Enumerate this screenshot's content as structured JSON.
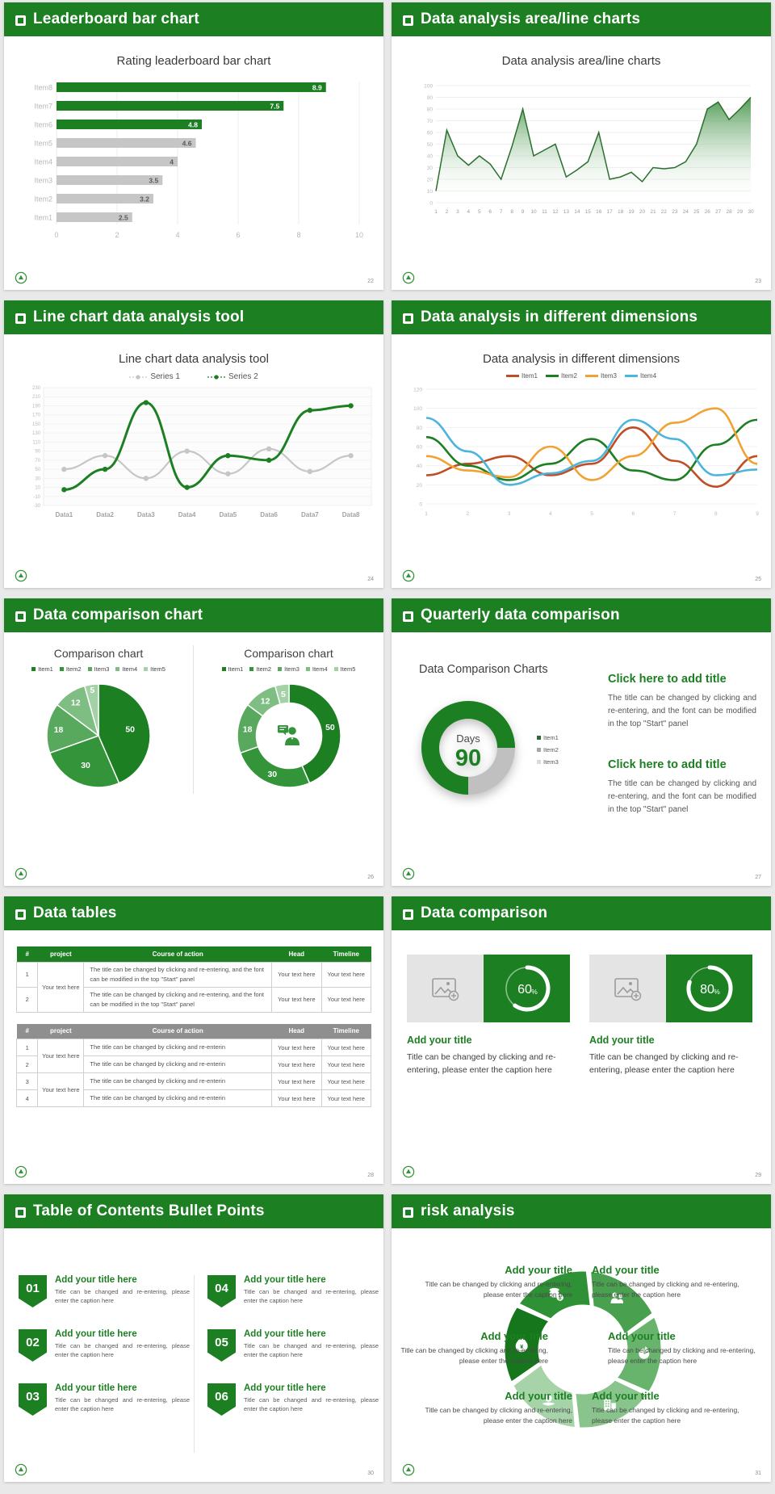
{
  "theme": {
    "green": "#1c7f22",
    "green_mid": "#349439",
    "green_light": "#58a95d",
    "green_lighter": "#7fbe83",
    "green_lightest": "#a4d2a6",
    "gray_bar": "#c6c6c6",
    "page_bg": "#e9e9e9",
    "red": "#bf4e26",
    "orange": "#f0a232",
    "blue": "#4bb5dc"
  },
  "slides": {
    "s1": {
      "header": "Leaderboard bar chart",
      "page": "22",
      "chart_title": "Rating leaderboard bar chart"
    },
    "s2": {
      "header": "Data analysis area/line charts",
      "page": "23",
      "chart_title": "Data analysis area/line charts"
    },
    "s3": {
      "header": "Line chart data analysis tool",
      "page": "24",
      "chart_title": "Line chart data analysis tool"
    },
    "s4": {
      "header": "Data analysis in different dimensions",
      "page": "25",
      "chart_title": "Data analysis in different dimensions"
    },
    "s5": {
      "header": "Data comparison chart",
      "page": "26",
      "pie_title": "Comparison chart",
      "donut_title": "Comparison chart"
    },
    "s6": {
      "header": "Quarterly data comparison",
      "page": "27",
      "chart_title": "Data Comparison Charts",
      "gauge_label": "Days",
      "gauge_value": "90",
      "gauge_legend": [
        "Item1",
        "Item2",
        "Item3"
      ],
      "blocks": [
        {
          "title": "Click here to add title",
          "body": "The title can be changed by clicking and re-entering, and the font can be modified in the top \"Start\" panel"
        },
        {
          "title": "Click here to add title",
          "body": "The title can be changed by clicking and re-entering, and the font can be modified in the top \"Start\" panel"
        }
      ]
    },
    "s7": {
      "header": "Data tables",
      "page": "28",
      "table1": {
        "columns": [
          "#",
          "project",
          "Course of action",
          "Head",
          "Timeline"
        ],
        "project_merged": "Your text here",
        "rows": [
          {
            "num": "1",
            "course": "The title can be changed by clicking and re-entering, and the font can be modified in the top \"Start\" panel",
            "head": "Your text here",
            "timeline": "Your text here"
          },
          {
            "num": "2",
            "course": "The title can be changed by clicking and re-entering, and the font can be modified in the top \"Start\" panel",
            "head": "Your text here",
            "timeline": "Your text here"
          }
        ]
      },
      "table2": {
        "columns": [
          "#",
          "project",
          "Course of action",
          "Head",
          "Timeline"
        ],
        "project_merged": "Your text here",
        "rows": [
          {
            "num": "1",
            "course": "The title can be changed by clicking and re-enterin",
            "head": "Your text here",
            "timeline": "Your text here"
          },
          {
            "num": "2",
            "course": "The title can be changed by clicking and re-enterin",
            "head": "Your text here",
            "timeline": "Your text here"
          },
          {
            "num": "3",
            "course": "The title can be changed by clicking and re-enterin",
            "head": "Your text here",
            "timeline": "Your text here"
          },
          {
            "num": "4",
            "course": "The title can be changed by clicking and re-enterin",
            "head": "Your text here",
            "timeline": "Your text here"
          }
        ]
      }
    },
    "s8": {
      "header": "Data comparison",
      "page": "29",
      "cards": [
        {
          "percent": 60,
          "suffix": "%",
          "title": "Add your title",
          "caption": "Title can be changed by clicking and re-entering, please enter the caption here"
        },
        {
          "percent": 80,
          "suffix": "%",
          "title": "Add your title",
          "caption": "Title can be changed by clicking and re-entering, please enter the caption here"
        }
      ]
    },
    "s9": {
      "header": "Table of Contents Bullet Points",
      "page": "30",
      "items": [
        {
          "num": "01",
          "title": "Add your title here",
          "caption": "Title can be changed and re-entering, please enter the caption here"
        },
        {
          "num": "02",
          "title": "Add your title here",
          "caption": "Title can be changed and re-entering, please enter the caption here"
        },
        {
          "num": "03",
          "title": "Add your title here",
          "caption": "Title can be changed and re-entering, please enter the caption here"
        },
        {
          "num": "04",
          "title": "Add your title here",
          "caption": "Title can be changed and re-entering, please enter the caption here"
        },
        {
          "num": "05",
          "title": "Add your title here",
          "caption": "Title can be changed and re-entering, please enter the caption here"
        },
        {
          "num": "06",
          "title": "Add your title here",
          "caption": "Title can be changed and re-entering, please enter the caption here"
        }
      ]
    },
    "s10": {
      "header": "risk analysis",
      "page": "31",
      "icons": [
        "moneybag-icon",
        "coins-icon",
        "people-icon",
        "pie-icon",
        "building-icon",
        "hand-money-icon"
      ],
      "items": [
        {
          "title": "Add your title",
          "caption": "Title can be changed by clicking and re-entering, please enter the caption here"
        },
        {
          "title": "Add your title",
          "caption": "Title can be changed by clicking and re-entering, please enter the caption here"
        },
        {
          "title": "Add your title",
          "caption": "Title can be changed by clicking and re-entering, please enter the caption here"
        },
        {
          "title": "Add your title",
          "caption": "Title can be changed by clicking and re-entering, please enter the caption here"
        },
        {
          "title": "Add your title",
          "caption": "Title can be changed by clicking and re-entering, please enter the caption here"
        },
        {
          "title": "Add your title",
          "caption": "Title can be changed by clicking and re-entering, please enter the caption here"
        }
      ]
    }
  },
  "chart_data": [
    {
      "id": "bar-leaderboard",
      "type": "bar",
      "orientation": "horizontal",
      "title": "Rating leaderboard bar chart",
      "categories": [
        "Item8",
        "Item7",
        "Item6",
        "Item5",
        "Item4",
        "Item3",
        "Item2",
        "Item1"
      ],
      "values": [
        8.9,
        7.5,
        4.8,
        4.6,
        4,
        3.5,
        3.2,
        2.5
      ],
      "highlight_green_count": 3,
      "xlim": [
        0,
        10
      ],
      "xticks": [
        0,
        2,
        4,
        6,
        8,
        10
      ]
    },
    {
      "id": "area-analysis",
      "type": "area",
      "title": "Data analysis area/line charts",
      "x": [
        1,
        2,
        3,
        4,
        5,
        6,
        7,
        8,
        9,
        10,
        11,
        12,
        13,
        14,
        15,
        16,
        17,
        18,
        19,
        20,
        21,
        22,
        23,
        24,
        25,
        26,
        27,
        28,
        29,
        30
      ],
      "values": [
        10,
        62,
        40,
        32,
        40,
        33,
        20,
        48,
        80,
        40,
        45,
        50,
        22,
        28,
        35,
        60,
        20,
        22,
        26,
        18,
        30,
        29,
        30,
        35,
        50,
        80,
        86,
        71,
        80,
        90
      ],
      "ylim": [
        0,
        100
      ],
      "ytick_step": 10
    },
    {
      "id": "line-tool",
      "type": "line",
      "title": "Line chart data analysis tool",
      "categories": [
        "Data1",
        "Data2",
        "Data3",
        "Data4",
        "Data5",
        "Data6",
        "Data7",
        "Data8"
      ],
      "series": [
        {
          "name": "Series 1",
          "color": "#c6c6c6",
          "values": [
            50,
            80,
            30,
            90,
            40,
            95,
            45,
            80
          ]
        },
        {
          "name": "Series 2",
          "color": "#1c7f22",
          "values": [
            5,
            50,
            197,
            10,
            80,
            70,
            180,
            190
          ]
        }
      ],
      "ylim": [
        -30,
        230
      ],
      "ytick_step": 20,
      "markers": true,
      "smooth": true
    },
    {
      "id": "line-dimensions",
      "type": "line",
      "title": "Data analysis in different dimensions",
      "x": [
        1,
        2,
        3,
        4,
        5,
        6,
        7,
        8,
        9
      ],
      "series": [
        {
          "name": "Item1",
          "color": "#bf4e26",
          "values": [
            30,
            42,
            50,
            30,
            42,
            80,
            45,
            18,
            50
          ]
        },
        {
          "name": "Item2",
          "color": "#1c7f22",
          "values": [
            70,
            40,
            25,
            42,
            68,
            35,
            25,
            62,
            88
          ]
        },
        {
          "name": "Item3",
          "color": "#f0a232",
          "values": [
            50,
            35,
            28,
            60,
            25,
            50,
            85,
            100,
            42
          ]
        },
        {
          "name": "Item4",
          "color": "#4bb5dc",
          "values": [
            90,
            55,
            20,
            32,
            45,
            88,
            68,
            30,
            36
          ]
        }
      ],
      "ylim": [
        0,
        120
      ],
      "ytick_step": 20,
      "markers": false,
      "smooth": true
    },
    {
      "id": "pie-comparison",
      "type": "pie",
      "title": "Comparison chart",
      "labels": [
        "Item1",
        "Item2",
        "Item3",
        "Item4",
        "Item5"
      ],
      "values": [
        50,
        30,
        18,
        12,
        5
      ],
      "colors": [
        "#1c7f22",
        "#349439",
        "#58a95d",
        "#7fbe83",
        "#a4d2a6"
      ]
    },
    {
      "id": "donut-comparison",
      "type": "pie",
      "donut": true,
      "title": "Comparison chart",
      "labels": [
        "Item1",
        "Item2",
        "Item3",
        "Item4",
        "Item5"
      ],
      "values": [
        50,
        30,
        18,
        12,
        5
      ],
      "colors": [
        "#1c7f22",
        "#349439",
        "#58a95d",
        "#7fbe83",
        "#a4d2a6"
      ],
      "center_icon": "businessman-speech-icon"
    },
    {
      "id": "gauge-days",
      "type": "pie",
      "donut": true,
      "title": "Data Comparison Charts",
      "center_label": "Days",
      "center_value": "90",
      "segments": [
        {
          "name": "green",
          "from_deg": 180,
          "to_deg": 450,
          "color": "#1c7f22"
        },
        {
          "name": "gray",
          "from_deg": 90,
          "to_deg": 180,
          "color": "#c0c0c0"
        }
      ],
      "legend": [
        "Item1",
        "Item2",
        "Item3"
      ],
      "legend_colors": [
        "#2d6a31",
        "#a6a6a6",
        "#d9d9d9"
      ]
    },
    {
      "id": "progress-rings",
      "type": "pie",
      "donut": true,
      "values": [
        60,
        80
      ],
      "unit": "%",
      "color": "#ffffff"
    }
  ]
}
